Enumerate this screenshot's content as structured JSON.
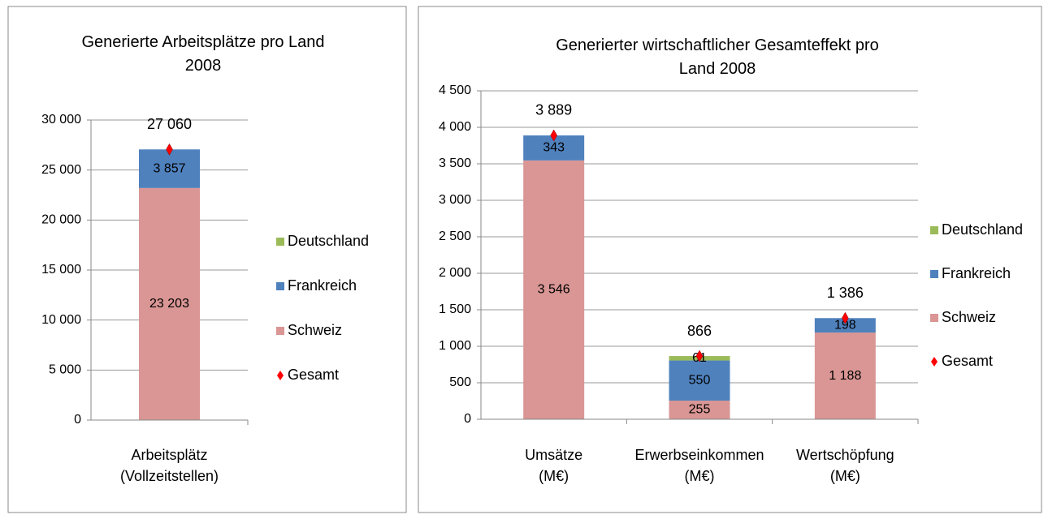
{
  "chart_data": [
    {
      "type": "stacked_bar",
      "title": "Generierte Arbeitsplätze pro Land\n2008",
      "categories": [
        "Arbeitsplätz\n(Vollzeitstellen)"
      ],
      "series": [
        {
          "name": "Deutschland",
          "color": "#9bbb59",
          "values": [
            null
          ]
        },
        {
          "name": "Frankreich",
          "color": "#4f81bd",
          "values": [
            3857
          ],
          "value_labels": [
            "3 857"
          ]
        },
        {
          "name": "Schweiz",
          "color": "#d99694",
          "values": [
            23203
          ],
          "value_labels": [
            "23 203"
          ]
        }
      ],
      "total": {
        "name": "Gesamt",
        "color": "#ff0000",
        "values": [
          27060
        ],
        "value_labels": [
          "27 060"
        ]
      },
      "ylim": [
        0,
        30000
      ],
      "yticks": [
        0,
        {
          "value": 5000,
          "label": "5 000"
        },
        {
          "value": 10000,
          "label": "10 000"
        },
        {
          "value": 15000,
          "label": "15 000"
        },
        {
          "value": 20000,
          "label": "20 000"
        },
        {
          "value": 25000,
          "label": "25 000"
        },
        {
          "value": 30000,
          "label": "30 000"
        }
      ],
      "grid": true,
      "legend": "right"
    },
    {
      "type": "stacked_bar",
      "title": "Generierter wirtschaftlicher Gesamteffekt pro Land 2008",
      "categories": [
        "Umsätze\n(M€)",
        "Erwerbseinkommen\n(M€)",
        "Wertschöpfung\n(M€)"
      ],
      "series": [
        {
          "name": "Deutschland",
          "color": "#9bbb59",
          "values": [
            null,
            61,
            null
          ]
        },
        {
          "name": "Frankreich",
          "color": "#4f81bd",
          "values": [
            343,
            550,
            198
          ]
        },
        {
          "name": "Schweiz",
          "color": "#d99694",
          "values": [
            3546,
            255,
            1188
          ],
          "value_labels": [
            "3 546",
            "255",
            "1 188"
          ]
        }
      ],
      "total": {
        "name": "Gesamt",
        "color": "#ff0000",
        "values": [
          3889,
          866,
          1386
        ],
        "value_labels": [
          "3 889",
          "866",
          "1 386"
        ]
      },
      "ylim": [
        0,
        4500
      ],
      "yticks": [
        0,
        500,
        {
          "value": 1000,
          "label": "1 000"
        },
        {
          "value": 1500,
          "label": "1 500"
        },
        {
          "value": 2000,
          "label": "2 000"
        },
        {
          "value": 2500,
          "label": "2 500"
        },
        {
          "value": 3000,
          "label": "3 000"
        },
        {
          "value": 3500,
          "label": "3 500"
        },
        {
          "value": 4000,
          "label": "4 000"
        },
        {
          "value": 4500,
          "label": "4 500"
        }
      ],
      "grid": true,
      "legend": "right"
    }
  ]
}
